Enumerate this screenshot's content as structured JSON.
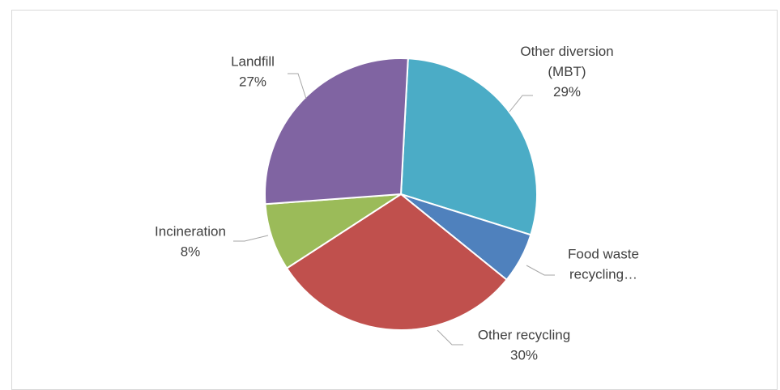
{
  "chart_data": {
    "type": "pie",
    "title": "",
    "legend": "none",
    "slices": [
      {
        "name": "Other diversion (MBT)",
        "label_lines": [
          "Other diversion",
          "(MBT)",
          "29%"
        ],
        "value": 29,
        "color": "#4BACC6"
      },
      {
        "name": "Food waste recycling…",
        "label_lines": [
          "Food waste",
          "recycling…"
        ],
        "value": 6,
        "color": "#4F81BD"
      },
      {
        "name": "Other recycling",
        "label_lines": [
          "Other recycling",
          "30%"
        ],
        "value": 30,
        "color": "#C0504D"
      },
      {
        "name": "Incineration",
        "label_lines": [
          "Incineration",
          "8%"
        ],
        "value": 8,
        "color": "#9BBB59"
      },
      {
        "name": "Landfill",
        "label_lines": [
          "Landfill",
          "27%"
        ],
        "value": 27,
        "color": "#8064A2"
      }
    ]
  }
}
